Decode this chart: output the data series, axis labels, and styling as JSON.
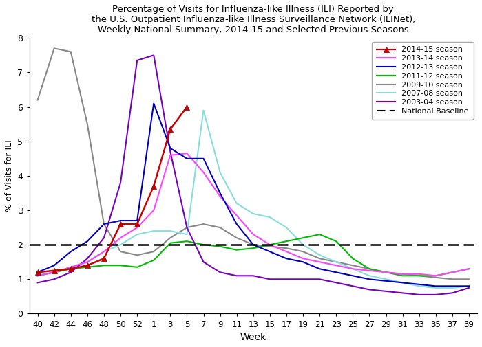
{
  "title": "Percentage of Visits for Influenza-like Illness (ILI) Reported by\nthe U.S. Outpatient Influenza-like Illness Surveillance Network (ILINet),\nWeekly National Summary, 2014-15 and Selected Previous Seasons",
  "xlabel": "Week",
  "ylabel": "% of Visits for ILI",
  "ylim": [
    0,
    8
  ],
  "yticks": [
    0,
    1,
    2,
    3,
    4,
    5,
    6,
    7,
    8
  ],
  "national_baseline": 2.0,
  "x_labels": [
    "40",
    "42",
    "44",
    "46",
    "48",
    "50",
    "52",
    "1",
    "3",
    "5",
    "7",
    "9",
    "11",
    "13",
    "15",
    "17",
    "19",
    "21",
    "23",
    "25",
    "27",
    "29",
    "31",
    "33",
    "35",
    "37",
    "39"
  ],
  "seasons": {
    "2014-15": {
      "color": "#CC0000",
      "linewidth": 1.8,
      "marker": "^",
      "markersize": 6,
      "values": [
        1.2,
        1.25,
        1.3,
        1.4,
        1.6,
        2.6,
        2.6,
        3.7,
        5.35,
        6.0,
        null,
        null,
        null,
        null,
        null,
        null,
        null,
        null,
        null,
        null,
        null,
        null,
        null,
        null,
        null,
        null,
        null
      ]
    },
    "2013-14": {
      "color": "#FF44FF",
      "linewidth": 1.5,
      "marker": null,
      "values": [
        1.1,
        1.2,
        1.35,
        1.5,
        1.8,
        2.2,
        2.5,
        3.0,
        4.6,
        4.65,
        4.1,
        3.4,
        2.85,
        2.3,
        2.0,
        1.8,
        1.6,
        1.5,
        1.4,
        1.3,
        1.25,
        1.2,
        1.15,
        1.15,
        1.1,
        1.2,
        1.3
      ]
    },
    "2012-13": {
      "color": "#0000BB",
      "linewidth": 1.5,
      "marker": null,
      "values": [
        1.2,
        1.4,
        1.8,
        2.1,
        2.6,
        2.7,
        2.7,
        6.1,
        4.8,
        4.5,
        4.5,
        3.5,
        2.6,
        2.0,
        1.8,
        1.6,
        1.5,
        1.3,
        1.2,
        1.1,
        1.0,
        0.95,
        0.9,
        0.85,
        0.8,
        0.8,
        0.8
      ]
    },
    "2011-12": {
      "color": "#00BB00",
      "linewidth": 1.5,
      "marker": null,
      "values": [
        1.1,
        1.2,
        1.3,
        1.35,
        1.4,
        1.4,
        1.35,
        1.55,
        2.05,
        2.1,
        2.0,
        1.95,
        1.85,
        1.9,
        2.0,
        2.1,
        2.2,
        2.3,
        2.1,
        1.6,
        1.3,
        1.2,
        1.1,
        1.1,
        1.1,
        1.2,
        1.3
      ]
    },
    "2009-10": {
      "color": "#888888",
      "linewidth": 1.5,
      "marker": null,
      "values": [
        6.2,
        7.7,
        7.6,
        5.5,
        2.6,
        1.8,
        1.7,
        1.8,
        2.2,
        2.5,
        2.6,
        2.5,
        2.2,
        2.0,
        1.95,
        1.9,
        1.8,
        1.6,
        1.5,
        1.4,
        1.3,
        1.2,
        1.15,
        1.1,
        1.05,
        1.0,
        1.0
      ]
    },
    "2007-08": {
      "color": "#88DDDD",
      "linewidth": 1.5,
      "marker": null,
      "values": [
        1.1,
        1.2,
        1.3,
        1.5,
        1.8,
        2.0,
        2.3,
        2.4,
        2.4,
        2.3,
        5.9,
        4.1,
        3.2,
        2.9,
        2.8,
        2.5,
        2.0,
        1.7,
        1.5,
        1.3,
        1.1,
        1.0,
        0.9,
        0.8,
        0.75,
        0.75,
        0.8
      ]
    },
    "2003-04": {
      "color": "#7700BB",
      "linewidth": 1.5,
      "marker": null,
      "values": [
        0.9,
        1.0,
        1.2,
        1.6,
        2.2,
        3.8,
        7.35,
        7.5,
        4.7,
        2.5,
        1.5,
        1.2,
        1.1,
        1.1,
        1.0,
        1.0,
        1.0,
        1.0,
        0.9,
        0.8,
        0.7,
        0.65,
        0.6,
        0.55,
        0.55,
        0.6,
        0.75
      ]
    }
  },
  "legend_order": [
    "2014-15",
    "2013-14",
    "2012-13",
    "2011-12",
    "2009-10",
    "2007-08",
    "2003-04"
  ],
  "plot_order": [
    "2009-10",
    "2007-08",
    "2011-12",
    "2003-04",
    "2013-14",
    "2012-13",
    "2014-15"
  ]
}
